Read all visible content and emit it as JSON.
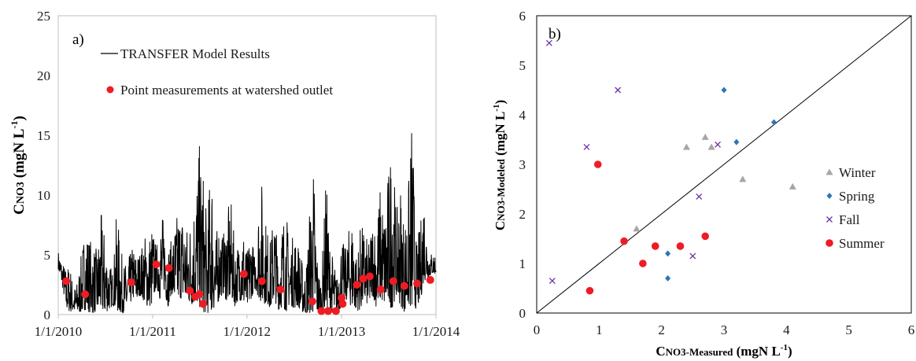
{
  "chart_data": [
    {
      "type": "line",
      "panel_label": "a)",
      "ylabel": {
        "main": "C",
        "sub": "NO3",
        "tail": " (mgN L",
        "sup": "-1",
        "close": ")"
      },
      "ylim": [
        0,
        25
      ],
      "yticks": [
        "0",
        "5",
        "10",
        "15",
        "20",
        "25"
      ],
      "xticks": [
        "1/1/2010",
        "1/1/2011",
        "1/1/2012",
        "1/1/2013",
        "1/1/2014"
      ],
      "xlim": [
        "1/1/2010",
        "1/1/2014"
      ],
      "legend": {
        "placement": "top-left",
        "line_label": "TRANSFER Model Results",
        "point_label": "Point measurements at watershed outlet"
      },
      "colors": {
        "model": "#000000",
        "measurements": "#ee1c24",
        "axis": "#bfbfbf"
      },
      "series": [
        {
          "name": "TRANSFER Model Results",
          "style": "line",
          "x": [
            "1/1/2010",
            "1/15/2010",
            "2/1/2010",
            "2/15/2010",
            "3/1/2010",
            "3/15/2010",
            "4/1/2010",
            "4/15/2010",
            "5/1/2010",
            "5/15/2010",
            "6/1/2010",
            "6/15/2010",
            "7/1/2010",
            "7/15/2010",
            "8/1/2010",
            "8/15/2010",
            "9/1/2010",
            "9/15/2010",
            "10/1/2010",
            "10/15/2010",
            "11/1/2010",
            "11/15/2010",
            "12/1/2010",
            "12/15/2010",
            "1/1/2011",
            "1/15/2011",
            "2/1/2011",
            "2/15/2011",
            "3/1/2011",
            "3/15/2011",
            "4/1/2011",
            "4/15/2011",
            "5/1/2011",
            "5/15/2011",
            "6/1/2011",
            "6/15/2011",
            "7/1/2011",
            "7/15/2011",
            "8/1/2011",
            "8/15/2011",
            "9/1/2011",
            "9/15/2011",
            "10/1/2011",
            "10/15/2011",
            "11/1/2011",
            "11/15/2011",
            "12/1/2011",
            "12/15/2011",
            "1/1/2012",
            "1/15/2012",
            "2/1/2012",
            "2/15/2012",
            "3/1/2012",
            "3/15/2012",
            "4/1/2012",
            "4/15/2012",
            "5/1/2012",
            "5/15/2012",
            "6/1/2012",
            "6/15/2012",
            "7/1/2012",
            "7/15/2012",
            "8/1/2012",
            "8/15/2012",
            "9/1/2012",
            "9/15/2012",
            "10/1/2012",
            "10/15/2012",
            "11/1/2012",
            "11/15/2012",
            "12/1/2012",
            "12/15/2012",
            "1/1/2013",
            "1/15/2013",
            "2/1/2013",
            "2/15/2013",
            "3/1/2013",
            "3/15/2013",
            "4/1/2013",
            "4/15/2013",
            "5/1/2013",
            "5/15/2013",
            "6/1/2013",
            "6/15/2013",
            "7/1/2013",
            "7/15/2013",
            "8/1/2013",
            "8/15/2013",
            "9/1/2013",
            "9/15/2013",
            "10/1/2013",
            "10/15/2013",
            "11/1/2013",
            "11/15/2013",
            "12/1/2013",
            "12/15/2013"
          ],
          "low": [
            3.8,
            2.6,
            0.5,
            0.2,
            0.3,
            0.1,
            0.2,
            0.4,
            0.2,
            0.1,
            0.3,
            0.2,
            0.1,
            0.4,
            0.8,
            0.3,
            0.1,
            0.2,
            0.5,
            1.4,
            1.2,
            1.6,
            1.0,
            0.6,
            0.8,
            2.4,
            1.1,
            2.0,
            0.6,
            1.8,
            0.9,
            1.4,
            1.2,
            1.0,
            0.8,
            0.9,
            0.6,
            0.2,
            0.1,
            0.3,
            0.5,
            1.2,
            1.8,
            1.0,
            1.4,
            0.7,
            1.3,
            0.9,
            0.4,
            1.2,
            2.2,
            1.4,
            0.8,
            1.0,
            0.5,
            1.3,
            0.4,
            0.6,
            0.3,
            0.9,
            0.5,
            0.7,
            0.2,
            0.1,
            0.1,
            0.0,
            0.1,
            0.1,
            0.6,
            0.3,
            0.1,
            0.2,
            0.6,
            1.4,
            0.8,
            0.6,
            0.3,
            0.4,
            1.1,
            0.7,
            1.6,
            0.6,
            1.2,
            0.8,
            0.6,
            0.5,
            1.6,
            0.8,
            0.2,
            0.6,
            0.4,
            0.5,
            1.0,
            2.8,
            3.0,
            3.4
          ],
          "high": [
            5.4,
            4.6,
            3.9,
            4.4,
            2.2,
            2.8,
            5.2,
            7.6,
            6.6,
            6.0,
            5.4,
            8.6,
            6.8,
            4.6,
            3.6,
            8.8,
            5.4,
            4.2,
            4.8,
            5.8,
            5.2,
            5.4,
            6.8,
            6.6,
            7.8,
            5.6,
            8.4,
            8.2,
            6.0,
            6.2,
            8.2,
            9.0,
            8.8,
            7.4,
            8.6,
            10.8,
            14.2,
            12.4,
            7.4,
            14.6,
            6.4,
            8.2,
            6.6,
            8.8,
            9.4,
            5.8,
            6.2,
            8.2,
            5.2,
            7.4,
            4.8,
            9.6,
            11.6,
            7.8,
            6.2,
            9.2,
            5.4,
            8.4,
            8.8,
            5.6,
            7.2,
            6.4,
            4.6,
            3.4,
            9.6,
            12.8,
            4.2,
            2.8,
            11.8,
            6.4,
            4.6,
            3.2,
            6.8,
            5.4,
            7.6,
            8.4,
            4.8,
            7.6,
            7.2,
            5.8,
            8.4,
            7.6,
            11.2,
            8.4,
            12.2,
            15.2,
            8.4,
            11.6,
            7.8,
            10.2,
            17.4,
            6.2,
            7.4,
            10.8,
            5.6,
            5.2
          ]
        },
        {
          "name": "Point measurements at watershed outlet",
          "style": "scatter",
          "x": [
            "2/1/2010",
            "4/15/2010",
            "10/10/2010",
            "1/15/2011",
            "3/5/2011",
            "5/25/2011",
            "6/15/2011",
            "7/1/2011",
            "7/15/2011",
            "12/20/2011",
            "2/28/2012",
            "5/10/2012",
            "9/10/2012",
            "10/15/2012",
            "11/10/2012",
            "12/10/2012",
            "1/1/2013",
            "1/5/2013",
            "3/1/2013",
            "3/25/2013",
            "4/20/2013",
            "6/1/2013",
            "7/20/2013",
            "9/1/2013",
            "10/20/2013",
            "12/10/2013"
          ],
          "y": [
            2.8,
            1.7,
            2.7,
            4.2,
            3.9,
            2.0,
            1.5,
            1.7,
            0.9,
            3.4,
            2.8,
            2.1,
            1.1,
            0.3,
            0.3,
            0.3,
            1.4,
            0.9,
            2.5,
            3.0,
            3.2,
            2.1,
            2.8,
            2.4,
            2.6,
            2.9
          ]
        }
      ]
    },
    {
      "type": "scatter",
      "panel_label": "b)",
      "xlabel": {
        "main": "C",
        "sub": "NO3-Measured",
        "tail": " (mgN L",
        "sup": "-1",
        "close": ")"
      },
      "ylabel": {
        "main": "C",
        "sub": "NO3-Modeled",
        "tail": " (mgN L",
        "sup": "-1",
        "close": ")"
      },
      "xlim": [
        0,
        6
      ],
      "ylim": [
        0,
        6
      ],
      "xticks": [
        "0",
        "1",
        "2",
        "3",
        "4",
        "5",
        "6"
      ],
      "yticks": [
        "0",
        "1",
        "2",
        "3",
        "4",
        "5",
        "6"
      ],
      "one_to_one_line": true,
      "legend": {
        "placement": "right"
      },
      "series": [
        {
          "name": "Winter",
          "marker": "triangle",
          "color": "#a6a6a6",
          "x": [
            1.6,
            2.4,
            2.7,
            2.8,
            3.3,
            4.1
          ],
          "y": [
            1.7,
            3.35,
            3.55,
            3.35,
            2.7,
            2.55
          ]
        },
        {
          "name": "Spring",
          "marker": "diamond",
          "color": "#2e75b6",
          "x": [
            2.1,
            2.1,
            3.0,
            3.2,
            3.8
          ],
          "y": [
            1.2,
            0.7,
            4.5,
            3.45,
            3.85
          ]
        },
        {
          "name": "Fall",
          "marker": "x",
          "color": "#7030a0",
          "x": [
            0.2,
            0.25,
            0.8,
            1.3,
            2.5,
            2.6,
            2.9
          ],
          "y": [
            5.45,
            0.65,
            3.35,
            4.5,
            1.15,
            2.35,
            3.4
          ]
        },
        {
          "name": "Summer",
          "marker": "circle",
          "color": "#ee1c24",
          "x": [
            0.85,
            0.98,
            1.4,
            1.7,
            1.9,
            2.3,
            2.7
          ],
          "y": [
            0.45,
            3.0,
            1.45,
            1.0,
            1.35,
            1.35,
            1.55
          ]
        }
      ]
    }
  ]
}
